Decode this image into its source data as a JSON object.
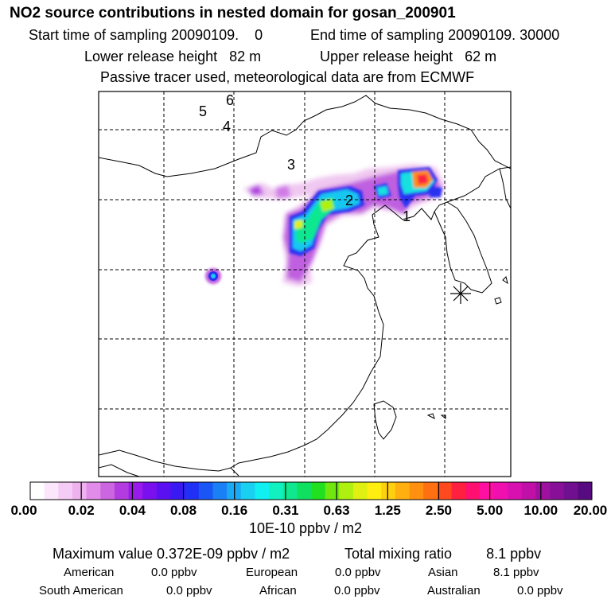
{
  "header": {
    "title": "NO2 source contributions in nested domain for gosan_200901",
    "start_sampling": "Start time of sampling 20090109.    0",
    "end_sampling": "End time of sampling 20090109. 30000",
    "lower_height": "Lower release height   82 m",
    "upper_height": "Upper release height   62 m",
    "tracer_note": "Passive tracer used, meteorological data are from ECMWF"
  },
  "map": {
    "source_labels": [
      "1",
      "2",
      "3",
      "4",
      "5",
      "6"
    ],
    "receptor_marker": "asterisk-marker"
  },
  "colorbar": {
    "ticks": [
      "0.00",
      "0.02",
      "0.04",
      "0.08",
      "0.16",
      "0.31",
      "0.63",
      "1.25",
      "2.50",
      "5.00",
      "10.00",
      "20.00"
    ],
    "unit": "10E-10 ppbv / m2",
    "colors": [
      "#ffffff",
      "#fbe6fb",
      "#f5ccf5",
      "#eeb2ee",
      "#e08ce8",
      "#cc66e0",
      "#b33ce0",
      "#9a1aeb",
      "#7a10ee",
      "#5a10f0",
      "#3a1af2",
      "#2030f5",
      "#1a55f5",
      "#1a80f5",
      "#1aaaf5",
      "#1ad0f0",
      "#10f0f0",
      "#10f0c0",
      "#10e890",
      "#10e060",
      "#20e020",
      "#70e810",
      "#b0f010",
      "#e0f010",
      "#ffee10",
      "#ffd010",
      "#ffb010",
      "#ff9010",
      "#ff7010",
      "#ff4a20",
      "#ff2040",
      "#ff1070",
      "#ff10a0",
      "#f010b0",
      "#d810b0",
      "#c010a8",
      "#a010a0",
      "#881098",
      "#700f90",
      "#580a80"
    ]
  },
  "stats": {
    "max_value": "Maximum value  0.372E-09 ppbv / m2",
    "total_mixing": "Total mixing ratio",
    "total_value": "8.1 ppbv",
    "regions": [
      {
        "name": "American",
        "value": "0.0 ppbv"
      },
      {
        "name": "European",
        "value": "0.0 ppbv"
      },
      {
        "name": "Asian",
        "value": "8.1 ppbv"
      },
      {
        "name": "South American",
        "value": "0.0 ppbv"
      },
      {
        "name": "African",
        "value": "0.0 ppbv"
      },
      {
        "name": "Australian",
        "value": "0.0 ppbv"
      }
    ]
  }
}
